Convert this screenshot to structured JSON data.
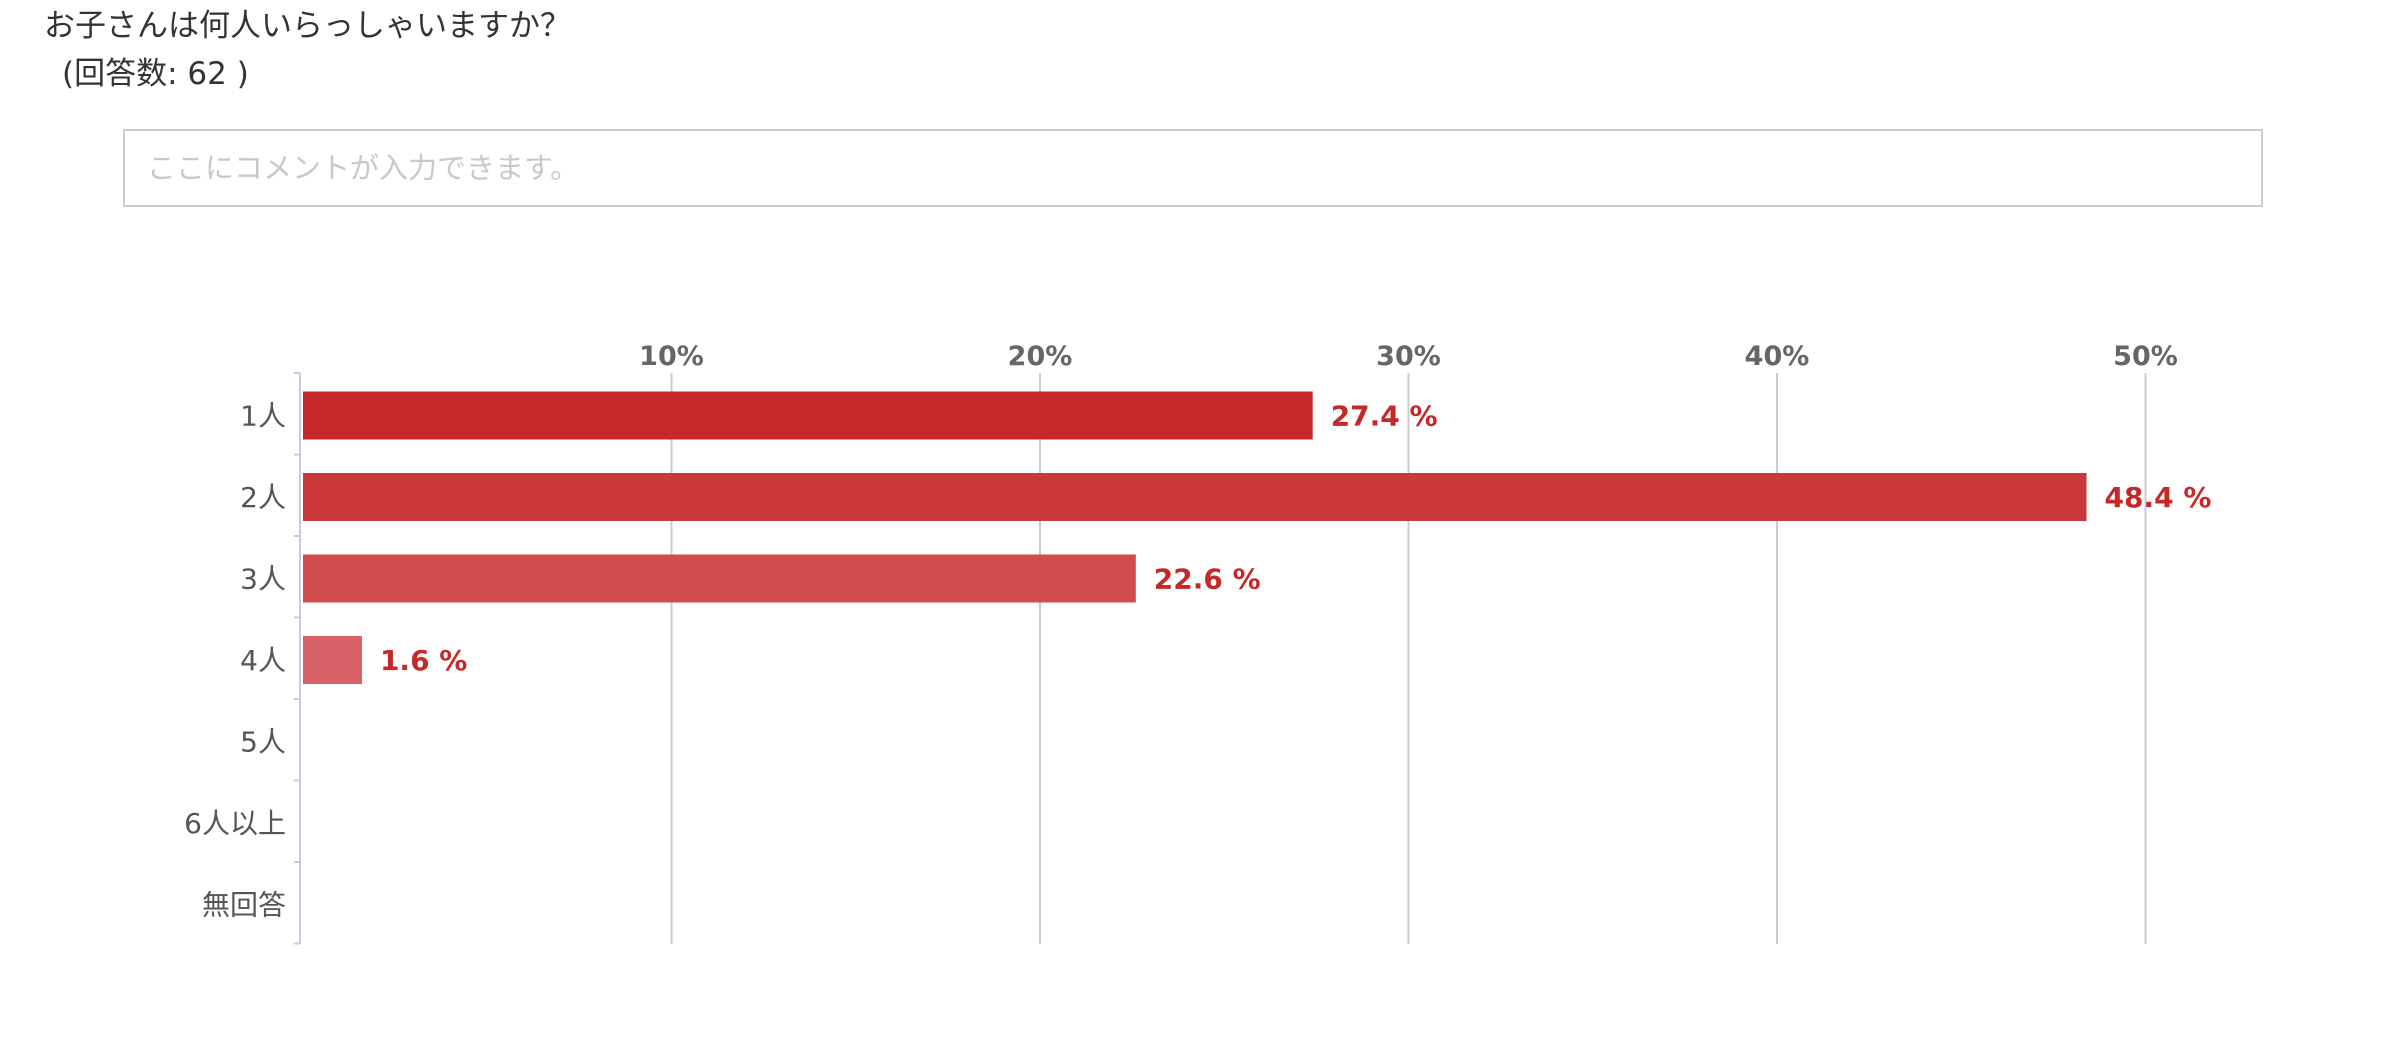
{
  "question": {
    "title": "お子さんは何人いらっしゃいますか？",
    "response_count": "(回答数: 62 )"
  },
  "comment": {
    "placeholder": "ここにコメントが入力できます。",
    "value": ""
  },
  "chart_data": {
    "type": "bar",
    "orientation": "horizontal",
    "categories": [
      "1人",
      "2人",
      "3人",
      "4人",
      "5人",
      "6人以上",
      "無回答"
    ],
    "values": [
      27.4,
      48.4,
      22.6,
      1.6,
      0,
      0,
      0
    ],
    "value_labels": [
      "27.4 %",
      "48.4 %",
      "22.6 %",
      "1.6 %",
      "",
      "",
      ""
    ],
    "bar_colors": [
      "#c62828",
      "#cb383b",
      "#d04c4e",
      "#d76167",
      "#dd7378",
      "#e2878b",
      "#e89a9e"
    ],
    "x_ticks": [
      10,
      20,
      30,
      40,
      50
    ],
    "x_tick_labels": [
      "10%",
      "20%",
      "30%",
      "40%",
      "50%"
    ],
    "xlim": [
      0,
      53
    ],
    "grid": true,
    "axis_position": "top",
    "label_color": "#c62828",
    "grid_color": "#cccccc",
    "axis_color": "#c3cde0"
  }
}
